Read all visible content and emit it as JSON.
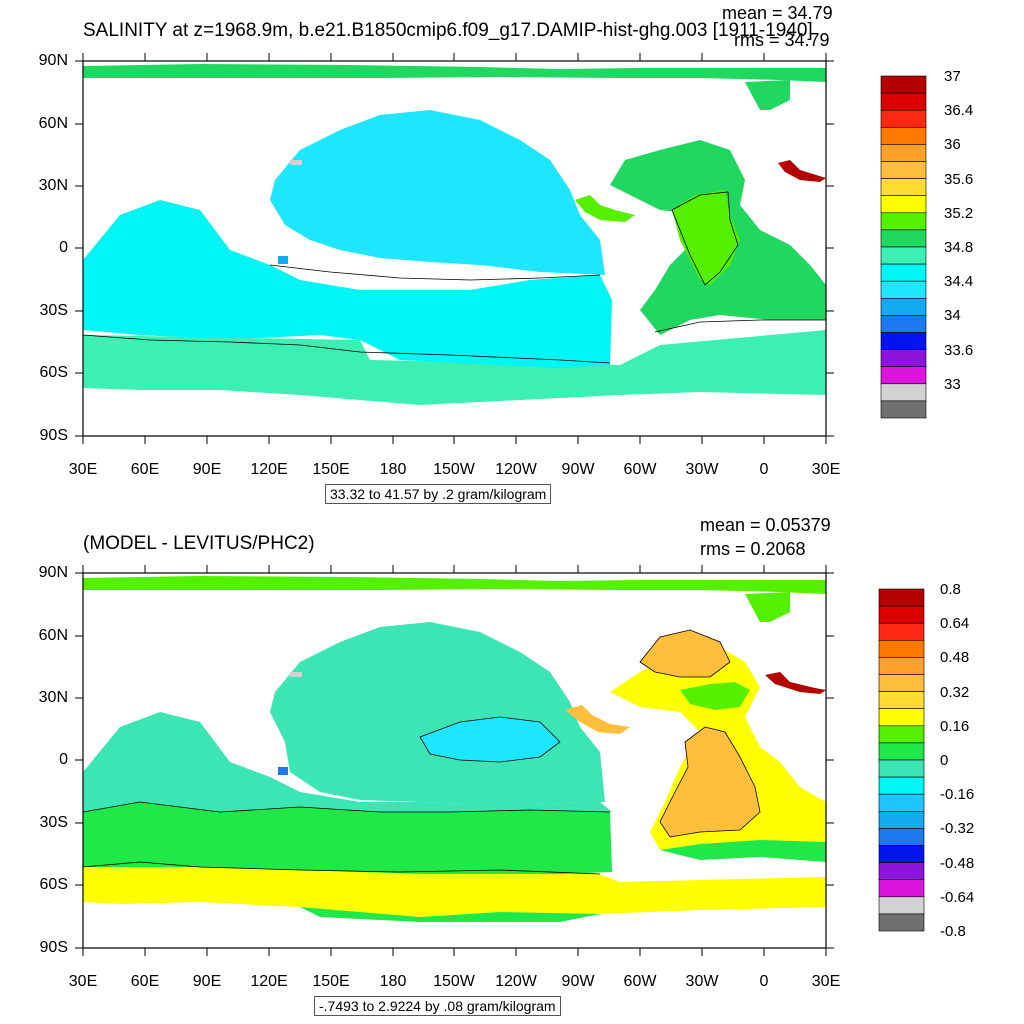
{
  "panels": [
    {
      "title": "SALINITY at z=1968.9m, b.e21.B1850cmip6.f09_g17.DAMIP-hist-ghg.003 [1911-1940]",
      "stats": {
        "mean": "mean = 34.79",
        "rms": "rms = 34.79"
      },
      "lat_labels": [
        "90N",
        "60N",
        "30N",
        "0",
        "30S",
        "60S",
        "90S"
      ],
      "lon_labels": [
        "30E",
        "60E",
        "90E",
        "120E",
        "150E",
        "180",
        "150W",
        "120W",
        "90W",
        "60W",
        "30W",
        "0",
        "30E"
      ],
      "range_text": "33.32 to 41.57 by .2 gram/kilogram",
      "colorbar": {
        "colors": [
          "#b40000",
          "#dc0000",
          "#ff2814",
          "#ff7800",
          "#ffa028",
          "#ffbe3c",
          "#ffdc32",
          "#ffff00",
          "#55f000",
          "#20d860",
          "#3cf0b4",
          "#00f5f5",
          "#1ee6ff",
          "#14aaf0",
          "#1e78f0",
          "#0014f0",
          "#8c14dc",
          "#dc14dc",
          "#d2d2d2",
          "#707070"
        ],
        "labels": [
          "37",
          "36.4",
          "36",
          "35.6",
          "35.2",
          "34.8",
          "34.4",
          "34",
          "33.6",
          "33"
        ]
      }
    },
    {
      "title": "(MODEL - LEVITUS/PHC2)",
      "stats": {
        "mean": "mean = 0.05379",
        "rms": "rms = 0.2068"
      },
      "lat_labels": [
        "90N",
        "60N",
        "30N",
        "0",
        "30S",
        "60S",
        "90S"
      ],
      "lon_labels": [
        "30E",
        "60E",
        "90E",
        "120E",
        "150E",
        "180",
        "150W",
        "120W",
        "90W",
        "60W",
        "30W",
        "0",
        "30E"
      ],
      "range_text": "-.7493 to 2.9224 by .08 gram/kilogram",
      "colorbar": {
        "colors": [
          "#b40000",
          "#dc0000",
          "#ff2814",
          "#ff7800",
          "#ffa028",
          "#ffbe3c",
          "#ffdc32",
          "#ffff00",
          "#55f000",
          "#20e848",
          "#3ce6b4",
          "#00f5f5",
          "#1ec8ff",
          "#14aaf0",
          "#1e78f0",
          "#0014f0",
          "#8c14dc",
          "#dc14dc",
          "#d2d2d2",
          "#707070"
        ],
        "labels": [
          "0.8",
          "0.64",
          "0.48",
          "0.32",
          "0.16",
          "0",
          "-0.16",
          "-0.32",
          "-0.48",
          "-0.64",
          "-0.8"
        ]
      }
    }
  ],
  "colors": {
    "land": "#ffffff",
    "frame": "#000000",
    "top_pacific": "#1ee6ff",
    "top_south": "#00f5f5",
    "top_southern_ocean": "#3cf0b4",
    "top_atlantic": "#20d860",
    "top_atlantic_core": "#55f000",
    "top_arctic": "#20d860",
    "top_red_sea": "#b40000",
    "bot_pacific": "#3ce6b4",
    "bot_south": "#20e848",
    "bot_southern_yellow": "#ffff00",
    "bot_atlantic_n": "#ffff00",
    "bot_atlantic_core": "#ffbe3c",
    "bot_equator_cyan": "#1ee6ff",
    "bot_red_sea": "#b40000"
  }
}
